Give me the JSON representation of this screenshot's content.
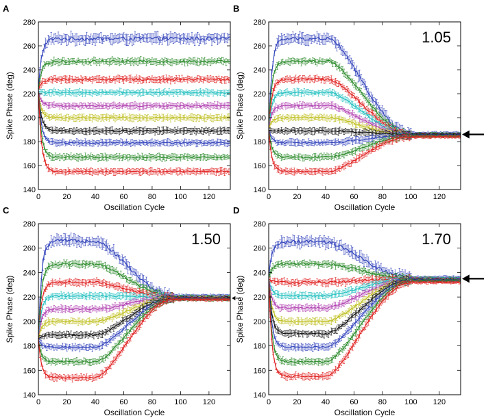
{
  "figure_title": "",
  "chart_data": [
    {
      "panel": "A",
      "type": "line",
      "annotation": "",
      "xlabel": "Oscillation Cycle",
      "ylabel": "Spike Phase (deg)",
      "xlim": [
        0,
        135
      ],
      "ylim": [
        140,
        280
      ],
      "xticks": [
        0,
        20,
        40,
        60,
        80,
        100,
        120
      ],
      "yticks": [
        140,
        160,
        180,
        200,
        220,
        240,
        260,
        280
      ],
      "arrow_value": null,
      "steady": [
        266,
        247,
        232,
        221,
        210,
        200,
        189,
        179,
        167,
        155
      ],
      "final": [
        266,
        247,
        232,
        221,
        210,
        200,
        189,
        179,
        167,
        155
      ],
      "transition": [
        0,
        0
      ],
      "series": [
        {
          "name": "blue (top)",
          "color": "#3344bb",
          "start": 222
        },
        {
          "name": "green",
          "color": "#2a8a2a",
          "start": 222
        },
        {
          "name": "red",
          "color": "#e02020",
          "start": 222
        },
        {
          "name": "cyan",
          "color": "#20bfbf",
          "start": 222
        },
        {
          "name": "magenta",
          "color": "#b040b0",
          "start": 222
        },
        {
          "name": "yellow",
          "color": "#bfbf20",
          "start": 222
        },
        {
          "name": "black",
          "color": "#111111",
          "start": 222
        },
        {
          "name": "blue",
          "color": "#3344bb",
          "start": 222
        },
        {
          "name": "green (low)",
          "color": "#2a8a2a",
          "start": 222
        },
        {
          "name": "red (bottom)",
          "color": "#e02020",
          "start": 222
        }
      ]
    },
    {
      "panel": "B",
      "type": "line",
      "annotation": "1.05",
      "xlabel": "Oscillation Cycle",
      "ylabel": "Spike Phase (deg)",
      "xlim": [
        0,
        135
      ],
      "ylim": [
        140,
        280
      ],
      "xticks": [
        0,
        20,
        40,
        60,
        80,
        100,
        120
      ],
      "yticks": [
        140,
        160,
        180,
        200,
        220,
        240,
        260,
        280
      ],
      "arrow_value": 186,
      "steady": [
        266,
        247,
        232,
        221,
        210,
        200,
        189,
        179,
        167,
        155
      ],
      "final": [
        187,
        186.5,
        186,
        185.5,
        185,
        185,
        186,
        185,
        184.5,
        184
      ],
      "transition": [
        42,
        100
      ],
      "series": [
        {
          "name": "blue (top)",
          "color": "#3344bb",
          "start": 190
        },
        {
          "name": "green",
          "color": "#2a8a2a",
          "start": 190
        },
        {
          "name": "red",
          "color": "#e02020",
          "start": 190
        },
        {
          "name": "cyan",
          "color": "#20bfbf",
          "start": 190
        },
        {
          "name": "magenta",
          "color": "#b040b0",
          "start": 190
        },
        {
          "name": "yellow",
          "color": "#bfbf20",
          "start": 190
        },
        {
          "name": "black",
          "color": "#111111",
          "start": 190
        },
        {
          "name": "blue",
          "color": "#3344bb",
          "start": 190
        },
        {
          "name": "green (low)",
          "color": "#2a8a2a",
          "start": 190
        },
        {
          "name": "red (bottom)",
          "color": "#e02020",
          "start": 190
        }
      ]
    },
    {
      "panel": "C",
      "type": "line",
      "annotation": "1.50",
      "xlabel": "Oscillation Cycle",
      "ylabel": "Spike Phase (deg)",
      "xlim": [
        0,
        135
      ],
      "ylim": [
        140,
        280
      ],
      "xticks": [
        0,
        20,
        40,
        60,
        80,
        100,
        120
      ],
      "yticks": [
        140,
        160,
        180,
        200,
        220,
        240,
        260,
        280
      ],
      "arrow_value": 219,
      "steady": [
        266,
        247,
        232,
        221,
        210,
        200,
        189,
        179,
        167,
        154
      ],
      "final": [
        221,
        220.5,
        220,
        220,
        219.5,
        219,
        219,
        218.5,
        218,
        218
      ],
      "transition": [
        40,
        95
      ],
      "series": [
        {
          "name": "blue (top)",
          "color": "#3344bb",
          "start": 185
        },
        {
          "name": "green",
          "color": "#2a8a2a",
          "start": 185
        },
        {
          "name": "red",
          "color": "#e02020",
          "start": 185
        },
        {
          "name": "cyan",
          "color": "#20bfbf",
          "start": 185
        },
        {
          "name": "magenta",
          "color": "#b040b0",
          "start": 185
        },
        {
          "name": "yellow",
          "color": "#bfbf20",
          "start": 185
        },
        {
          "name": "black",
          "color": "#111111",
          "start": 185
        },
        {
          "name": "blue",
          "color": "#3344bb",
          "start": 185
        },
        {
          "name": "green (low)",
          "color": "#2a8a2a",
          "start": 185
        },
        {
          "name": "red (bottom)",
          "color": "#e02020",
          "start": 185
        }
      ]
    },
    {
      "panel": "D",
      "type": "line",
      "annotation": "1.70",
      "xlabel": "Oscillation Cycle",
      "ylabel": "Spike Phase (deg)",
      "xlim": [
        0,
        135
      ],
      "ylim": [
        140,
        280
      ],
      "xticks": [
        0,
        20,
        40,
        60,
        80,
        100,
        120
      ],
      "yticks": [
        140,
        160,
        180,
        200,
        220,
        240,
        260,
        280
      ],
      "arrow_value": 235,
      "steady": [
        265,
        247,
        232,
        221,
        211,
        200,
        190,
        179,
        167,
        155
      ],
      "final": [
        236,
        235.5,
        235,
        235,
        234.5,
        234,
        234,
        233.5,
        233,
        232
      ],
      "transition": [
        40,
        100
      ],
      "series": [
        {
          "name": "blue (top)",
          "color": "#3344bb",
          "start": 235
        },
        {
          "name": "green",
          "color": "#2a8a2a",
          "start": 235
        },
        {
          "name": "red",
          "color": "#e02020",
          "start": 235
        },
        {
          "name": "cyan",
          "color": "#20bfbf",
          "start": 235
        },
        {
          "name": "magenta",
          "color": "#b040b0",
          "start": 235
        },
        {
          "name": "yellow",
          "color": "#bfbf20",
          "start": 235
        },
        {
          "name": "black",
          "color": "#111111",
          "start": 235
        },
        {
          "name": "blue",
          "color": "#3344bb",
          "start": 235
        },
        {
          "name": "green (low)",
          "color": "#2a8a2a",
          "start": 235
        },
        {
          "name": "red (bottom)",
          "color": "#e02020",
          "start": 235
        }
      ]
    }
  ]
}
